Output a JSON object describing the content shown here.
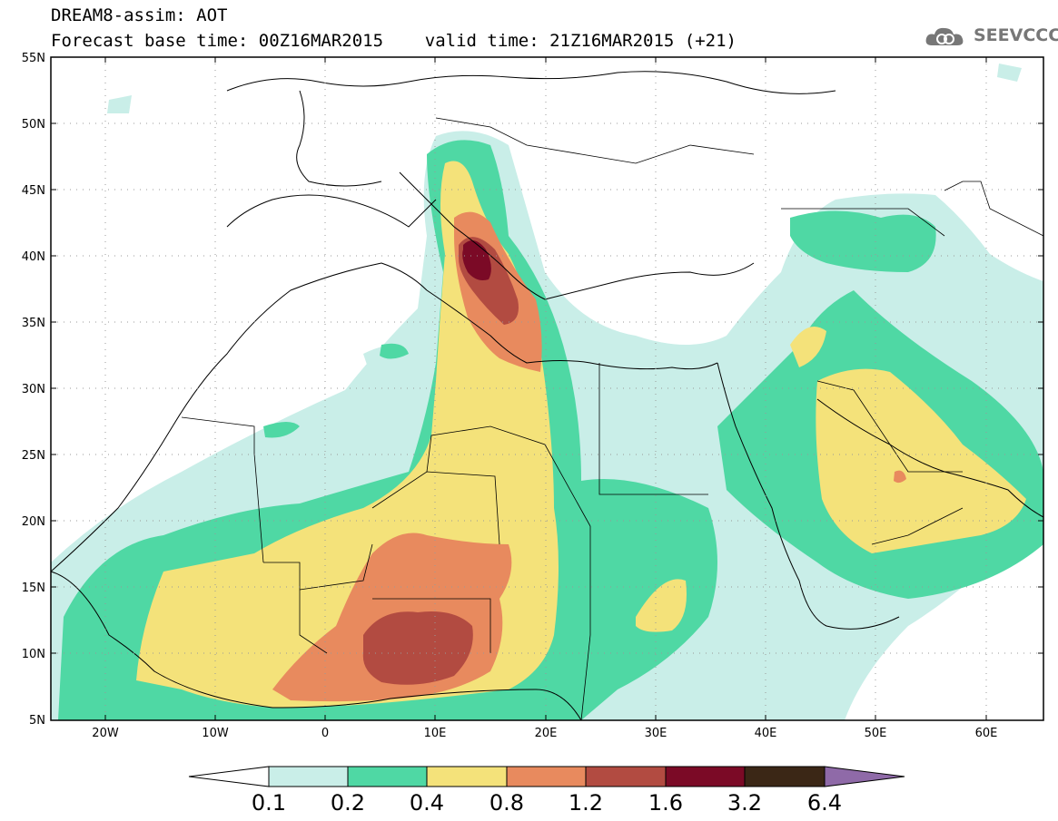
{
  "header": {
    "title_line1": "DREAM8-assim: AOT",
    "title_line2": "Forecast base time: 00Z16MAR2015    valid time: 21Z16MAR2015 (+21)",
    "logo_text": "SEEVCCC"
  },
  "map": {
    "projection": "lat-lon",
    "lon_range": [
      -25,
      65
    ],
    "lat_range": [
      5,
      55
    ],
    "lat_ticks": [
      "55N",
      "50N",
      "45N",
      "40N",
      "35N",
      "30N",
      "25N",
      "20N",
      "15N",
      "10N",
      "5N"
    ],
    "lon_ticks": [
      "20W",
      "10W",
      "0",
      "10E",
      "20E",
      "30E",
      "40E",
      "50E",
      "60E"
    ],
    "gridlines": "dotted",
    "field": "Aerosol Optical Thickness"
  },
  "colorbar": {
    "labels": [
      "0.1",
      "0.2",
      "0.4",
      "0.8",
      "1.2",
      "1.6",
      "3.2",
      "6.4"
    ],
    "colors": [
      "#c9eee8",
      "#4fd8a4",
      "#f4e27a",
      "#e88a5e",
      "#b24b41",
      "#7b0a26",
      "#3b2716",
      "#8f6aa8"
    ],
    "extend": "both"
  },
  "colors": {
    "aot_01": "#c9eee8",
    "aot_02": "#4fd8a4",
    "aot_04": "#f4e27a",
    "aot_08": "#e88a5e",
    "aot_12": "#b24b41",
    "aot_16": "#7b0a26"
  }
}
